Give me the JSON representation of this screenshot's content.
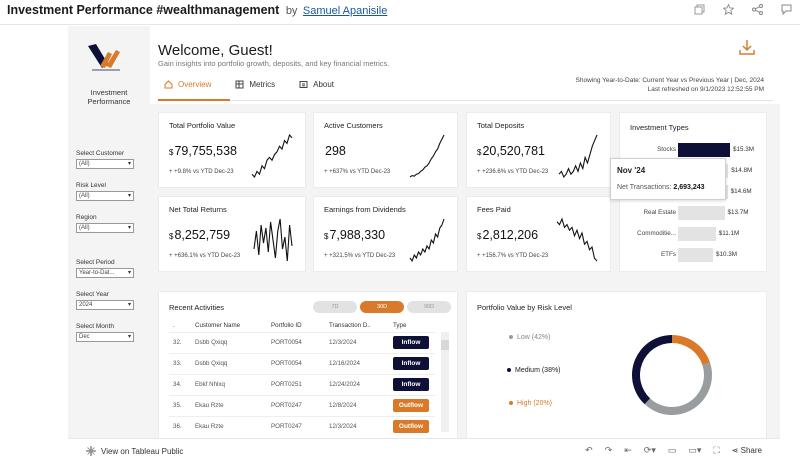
{
  "header": {
    "title": "Investment Performance #wealthmanagement",
    "by": "by",
    "author": "Samuel Apanisile",
    "icons": [
      "copy-icon",
      "star-icon",
      "share-icon",
      "comment-icon"
    ]
  },
  "sidebar": {
    "title_line1": "Investment",
    "title_line2": "Performance",
    "filters": [
      {
        "label": "Select Customer",
        "value": "(All)"
      },
      {
        "label": "Risk Level",
        "value": "(All)"
      },
      {
        "label": "Region",
        "value": "(All)"
      },
      {
        "label": "Select Period",
        "value": "Year-to-Dat..."
      },
      {
        "label": "Select Year",
        "value": "2024"
      },
      {
        "label": "Select Month",
        "value": "Dec"
      }
    ]
  },
  "main": {
    "welcome": "Welcome, Guest!",
    "subtitle": "Gain insights into portfolio growth, deposits, and key financial metrics.",
    "period_line1": "Showing Year-to-Date: Current Year vs Previous Year | Dec, 2024",
    "period_line2": "Last refreshed on 9/1/2023 12:52:55 PM",
    "tabs": [
      {
        "label": "Overview",
        "icon": "home-icon"
      },
      {
        "label": "Metrics",
        "icon": "table-icon"
      },
      {
        "label": "About",
        "icon": "info-icon"
      }
    ]
  },
  "kpis": [
    {
      "title": "Total Portfolio Value",
      "currency": "$",
      "value": "79,755,538",
      "change": "+ +9.8% vs YTD Dec-23",
      "spark": [
        2,
        1,
        3,
        2,
        5,
        4,
        7,
        8,
        7,
        9,
        10,
        12,
        11,
        14,
        13,
        16,
        15
      ]
    },
    {
      "title": "Active Customers",
      "currency": "",
      "value": "298",
      "change": "+ +637% vs YTD Dec-23",
      "spark": [
        0,
        0.5,
        0.3,
        1,
        1.2,
        2,
        2.5,
        3.5,
        4,
        5,
        6.5,
        7.5,
        9,
        10,
        12,
        13.5,
        15
      ]
    },
    {
      "title": "Total Deposits",
      "currency": "$",
      "value": "20,520,781",
      "change": "+ +236.6% vs YTD Dec-23",
      "spark": [
        2,
        3,
        1,
        2,
        4,
        2,
        3,
        5,
        3,
        6,
        4,
        8,
        6,
        9,
        12,
        14,
        16
      ]
    },
    {
      "title": "Net Total Returns",
      "currency": "$",
      "value": "8,252,759",
      "change": "+ +636.1% vs YTD Dec-23",
      "spark": [
        6,
        12,
        4,
        14,
        8,
        13,
        5,
        15,
        9,
        3,
        12,
        16,
        6,
        10,
        2,
        14,
        7
      ]
    },
    {
      "title": "Earnings from Dividends",
      "currency": "$",
      "value": "7,988,330",
      "change": "+ +321.5% vs YTD Dec-23",
      "spark": [
        3,
        2,
        4,
        3,
        5,
        4,
        6,
        5,
        7,
        6,
        9,
        8,
        11,
        10,
        13,
        14,
        16
      ]
    },
    {
      "title": "Fees Paid",
      "currency": "$",
      "value": "2,812,206",
      "change": "+ +156.7% vs YTD Dec-23",
      "spark": [
        15,
        14,
        16,
        13,
        14,
        12,
        13,
        10,
        12,
        9,
        11,
        7,
        8,
        5,
        6,
        2,
        1
      ]
    }
  ],
  "investment_types": {
    "title": "Investment Types",
    "rows": [
      {
        "name": "Stocks",
        "value": 15.3,
        "label": "$15.3M",
        "highlight": true
      },
      {
        "name": "",
        "value": 14.8,
        "label": "$14.8M",
        "highlight": false
      },
      {
        "name": "",
        "value": 14.6,
        "label": "$14.6M",
        "highlight": false
      },
      {
        "name": "Real Estate",
        "value": 13.7,
        "label": "$13.7M",
        "highlight": false
      },
      {
        "name": "Commoditie...",
        "value": 11.1,
        "label": "$11.1M",
        "highlight": false
      },
      {
        "name": "ETFs",
        "value": 10.3,
        "label": "$10.3M",
        "highlight": false
      }
    ],
    "colors": {
      "highlight": "#0e1038",
      "normal": "#e3e3e3"
    }
  },
  "tooltip": {
    "title": "Nov '24",
    "label": "Net Transactions:",
    "value": "2,693,243"
  },
  "recent_activities": {
    "title": "Recent Activities",
    "pills": [
      "7D",
      "30D",
      "90D"
    ],
    "active_pill": 1,
    "columns": [
      ".",
      "Customer Name",
      "Portfolio ID",
      "Transaction D..",
      "Type"
    ],
    "rows": [
      {
        "n": "32.",
        "name": "Dsbb Qxiqq",
        "pid": "PORT0054",
        "date": "12/3/2024",
        "type": "Inflow"
      },
      {
        "n": "33.",
        "name": "Dsbb Qxiqq",
        "pid": "PORT0054",
        "date": "12/16/2024",
        "type": "Inflow"
      },
      {
        "n": "34.",
        "name": "Ebkf Nhlxq",
        "pid": "PORT0251",
        "date": "12/24/2024",
        "type": "Inflow"
      },
      {
        "n": "35.",
        "name": "Ekau Rzte",
        "pid": "PORT0247",
        "date": "12/8/2024",
        "type": "Outflow"
      },
      {
        "n": "36.",
        "name": "Ekau Rzte",
        "pid": "PORT0247",
        "date": "12/3/2024",
        "type": "Outflow"
      }
    ],
    "colors": {
      "Inflow": "#0e1038",
      "Outflow": "#d97a2b"
    }
  },
  "risk_chart": {
    "title": "Portfolio Value by Risk Level",
    "legend": [
      {
        "label": "Low (42%)",
        "share": 42,
        "color": "#9a9d9f"
      },
      {
        "label": "Medium (38%)",
        "share": 38,
        "color": "#0e1038"
      },
      {
        "label": "High (20%)",
        "share": 20,
        "color": "#d97a2b"
      }
    ]
  },
  "chart_data": {
    "type": "bar",
    "title": "Investment Types",
    "categories": [
      "Stocks",
      "",
      "",
      "Real Estate",
      "Commoditie...",
      "ETFs"
    ],
    "values": [
      15.3,
      14.8,
      14.6,
      13.7,
      11.1,
      10.3
    ],
    "value_labels": [
      "$15.3M",
      "$14.8M",
      "$14.6M",
      "$13.7M",
      "$11.1M",
      "$10.3M"
    ]
  },
  "footer": {
    "view_label": "View on Tableau Public",
    "share_label": "Share"
  },
  "accent": "#d97a2b"
}
